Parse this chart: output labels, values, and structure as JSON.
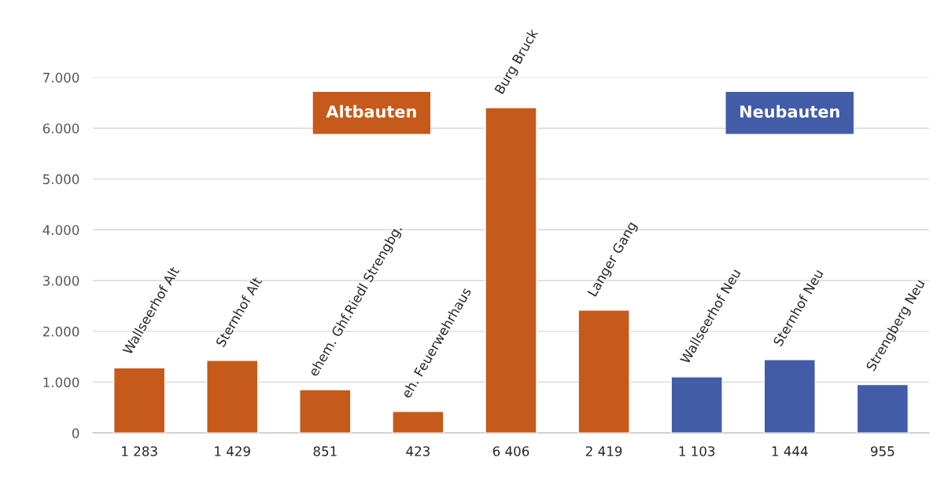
{
  "chart_data": {
    "type": "bar",
    "categories": [
      "Wallseerhof Alt",
      "Sternhof Alt",
      "ehem. Ghf.Riedl Strengbg.",
      "eh. Feuerwehrhaus",
      "Burg Bruck",
      "Langer Gang",
      "Wallseerhof Neu",
      "Sternhof Neu",
      "Strengberg Neu"
    ],
    "series": [
      {
        "name": "Altbauten",
        "color": "#c55a1a",
        "values": [
          1283,
          1429,
          851,
          423,
          6406,
          2419,
          null,
          null,
          null
        ]
      },
      {
        "name": "Neubauten",
        "color": "#435ca8",
        "values": [
          null,
          null,
          null,
          null,
          null,
          null,
          1103,
          1444,
          955
        ]
      }
    ],
    "value_labels": [
      "1 283",
      "1 429",
      "851",
      "423",
      "6 406",
      "2 419",
      "1 103",
      "1 444",
      "955"
    ],
    "ylim": [
      0,
      7000
    ],
    "yticks": [
      0,
      {
        "value": 1000,
        "label": "1.000"
      },
      {
        "value": 2000,
        "label": "2.000"
      },
      {
        "value": 3000,
        "label": "3.000"
      },
      {
        "value": 4000,
        "label": "4.000"
      },
      {
        "value": 5000,
        "label": "5.000"
      },
      {
        "value": 6000,
        "label": "6.000"
      },
      {
        "value": 7000,
        "label": "7.000"
      }
    ],
    "grid": "y",
    "legend": "top"
  }
}
